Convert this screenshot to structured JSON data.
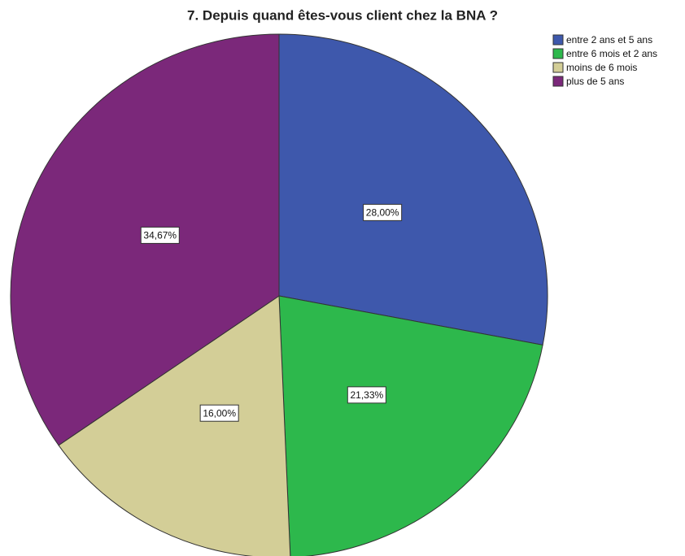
{
  "chart_data": {
    "type": "pie",
    "title": "7. Depuis quand êtes-vous client chez la BNA ?",
    "categories": [
      "entre 2 ans et 5 ans",
      "entre 6 mois et 2 ans",
      "moins de 6 mois",
      "plus de 5 ans"
    ],
    "values": [
      28.0,
      21.33,
      16.0,
      34.67
    ],
    "value_labels": [
      "28,00%",
      "21,33%",
      "16,00%",
      "34,67%"
    ],
    "colors": [
      "#3e58ac",
      "#2db84c",
      "#d3ce97",
      "#7b287a"
    ],
    "legend": "top-right"
  }
}
